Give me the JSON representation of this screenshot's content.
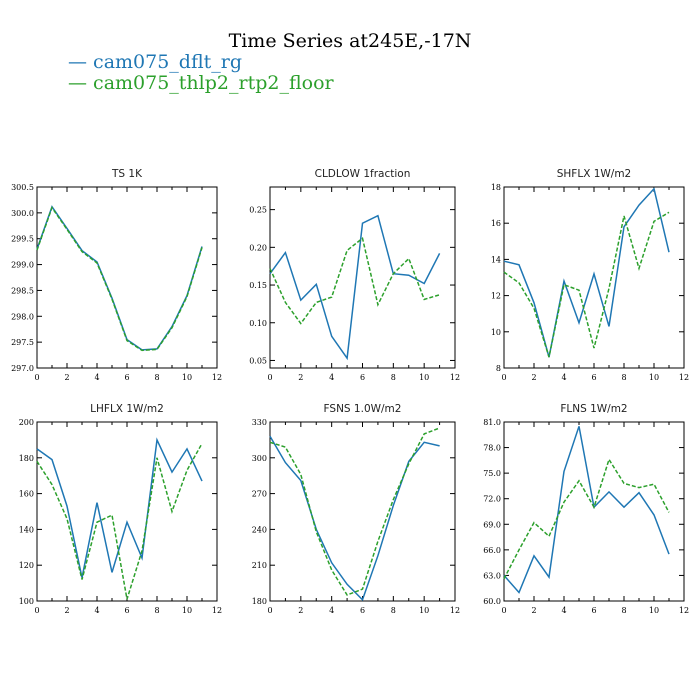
{
  "title": "Time Series at245E,-17N",
  "colors": {
    "series1": "#1f77b4",
    "series2": "#2ca02c"
  },
  "legend": [
    {
      "symbol": "—",
      "label": "cam075_dflt_rg",
      "color": "#1f77b4",
      "dash": "solid"
    },
    {
      "symbol": "—",
      "label": "cam075_thlp2_rtp2_floor",
      "color": "#2ca02c",
      "dash": "dashed"
    }
  ],
  "chart_data": [
    {
      "type": "line",
      "title": "TS   1K",
      "x": [
        0,
        1,
        2,
        3,
        4,
        5,
        6,
        7,
        8,
        9,
        10,
        11
      ],
      "xlim": [
        0,
        12
      ],
      "xticks": [
        "0",
        "2",
        "4",
        "6",
        "8",
        "10",
        "12"
      ],
      "ylim": [
        297.0,
        300.5
      ],
      "yticks": [
        "297.0",
        "297.5",
        "298.0",
        "298.5",
        "299.0",
        "299.5",
        "300.0",
        "300.5"
      ],
      "series": [
        {
          "name": "cam075_dflt_rg",
          "values": [
            299.3,
            300.12,
            299.7,
            299.27,
            299.05,
            298.35,
            297.55,
            297.35,
            297.37,
            297.8,
            298.4,
            299.35
          ]
        },
        {
          "name": "cam075_thlp2_rtp2_floor",
          "values": [
            299.28,
            300.1,
            299.68,
            299.25,
            299.03,
            298.33,
            297.53,
            297.34,
            297.36,
            297.78,
            298.38,
            299.33
          ]
        }
      ]
    },
    {
      "type": "line",
      "title": "CLDLOW   1fraction",
      "x": [
        0,
        1,
        2,
        3,
        4,
        5,
        6,
        7,
        8,
        9,
        10,
        11
      ],
      "xlim": [
        0,
        12
      ],
      "xticks": [
        "0",
        "2",
        "4",
        "6",
        "8",
        "10",
        "12"
      ],
      "ylim": [
        0.04,
        0.28
      ],
      "yticks": [
        "0.05",
        "0.10",
        "0.15",
        "0.20",
        "0.25"
      ],
      "series": [
        {
          "name": "cam075_dflt_rg",
          "values": [
            0.165,
            0.193,
            0.13,
            0.151,
            0.082,
            0.053,
            0.232,
            0.242,
            0.165,
            0.163,
            0.152,
            0.192
          ]
        },
        {
          "name": "cam075_thlp2_rtp2_floor",
          "values": [
            0.172,
            0.127,
            0.099,
            0.127,
            0.134,
            0.196,
            0.212,
            0.124,
            0.165,
            0.185,
            0.131,
            0.137
          ]
        }
      ]
    },
    {
      "type": "line",
      "title": "SHFLX   1W/m2",
      "x": [
        0,
        1,
        2,
        3,
        4,
        5,
        6,
        7,
        8,
        9,
        10,
        11
      ],
      "xlim": [
        0,
        12
      ],
      "xticks": [
        "0",
        "2",
        "4",
        "6",
        "8",
        "10",
        "12"
      ],
      "ylim": [
        8,
        18
      ],
      "yticks": [
        "8",
        "10",
        "12",
        "14",
        "16",
        "18"
      ],
      "series": [
        {
          "name": "cam075_dflt_rg",
          "values": [
            13.9,
            13.7,
            11.6,
            8.6,
            12.8,
            10.5,
            13.2,
            10.3,
            15.8,
            17.0,
            17.9,
            14.4
          ]
        },
        {
          "name": "cam075_thlp2_rtp2_floor",
          "values": [
            13.3,
            12.7,
            11.3,
            8.6,
            12.6,
            12.3,
            9.1,
            12.4,
            16.4,
            13.5,
            16.1,
            16.6
          ]
        }
      ]
    },
    {
      "type": "line",
      "title": "LHFLX   1W/m2",
      "x": [
        0,
        1,
        2,
        3,
        4,
        5,
        6,
        7,
        8,
        9,
        10,
        11
      ],
      "xlim": [
        0,
        12
      ],
      "xticks": [
        "0",
        "2",
        "4",
        "6",
        "8",
        "10",
        "12"
      ],
      "ylim": [
        100,
        200
      ],
      "yticks": [
        "100",
        "120",
        "140",
        "160",
        "180",
        "200"
      ],
      "series": [
        {
          "name": "cam075_dflt_rg",
          "values": [
            185,
            179,
            153,
            113,
            155,
            116,
            144,
            124,
            190,
            172,
            185,
            167
          ]
        },
        {
          "name": "cam075_thlp2_rtp2_floor",
          "values": [
            178,
            165,
            146,
            112,
            144,
            148,
            101,
            128,
            180,
            150,
            173,
            188
          ]
        }
      ]
    },
    {
      "type": "line",
      "title": "FSNS   1.0W/m2",
      "x": [
        0,
        1,
        2,
        3,
        4,
        5,
        6,
        7,
        8,
        9,
        10,
        11
      ],
      "xlim": [
        0,
        12
      ],
      "xticks": [
        "0",
        "2",
        "4",
        "6",
        "8",
        "10",
        "12"
      ],
      "ylim": [
        180,
        330
      ],
      "yticks": [
        "180",
        "210",
        "240",
        "270",
        "300",
        "330"
      ],
      "series": [
        {
          "name": "cam075_dflt_rg",
          "values": [
            318,
            296,
            281,
            240,
            212,
            194,
            181,
            218,
            260,
            297,
            313,
            310
          ]
        },
        {
          "name": "cam075_thlp2_rtp2_floor",
          "values": [
            313,
            309,
            286,
            238,
            206,
            185,
            190,
            230,
            265,
            295,
            320,
            325
          ]
        }
      ]
    },
    {
      "type": "line",
      "title": "FLNS   1W/m2",
      "x": [
        0,
        1,
        2,
        3,
        4,
        5,
        6,
        7,
        8,
        9,
        10,
        11
      ],
      "xlim": [
        0,
        12
      ],
      "xticks": [
        "0",
        "2",
        "4",
        "6",
        "8",
        "10",
        "12"
      ],
      "ylim": [
        60.0,
        81.0
      ],
      "yticks": [
        "60.0",
        "63.0",
        "66.0",
        "69.0",
        "72.0",
        "75.0",
        "78.0",
        "81.0"
      ],
      "series": [
        {
          "name": "cam075_dflt_rg",
          "values": [
            63.0,
            61.0,
            65.3,
            62.8,
            75.2,
            80.5,
            71.0,
            72.8,
            71.0,
            72.7,
            70.1,
            65.5
          ]
        },
        {
          "name": "cam075_thlp2_rtp2_floor",
          "values": [
            62.6,
            66.0,
            69.2,
            67.6,
            71.6,
            74.1,
            71.0,
            76.6,
            73.8,
            73.3,
            73.7,
            70.4
          ]
        }
      ]
    }
  ]
}
